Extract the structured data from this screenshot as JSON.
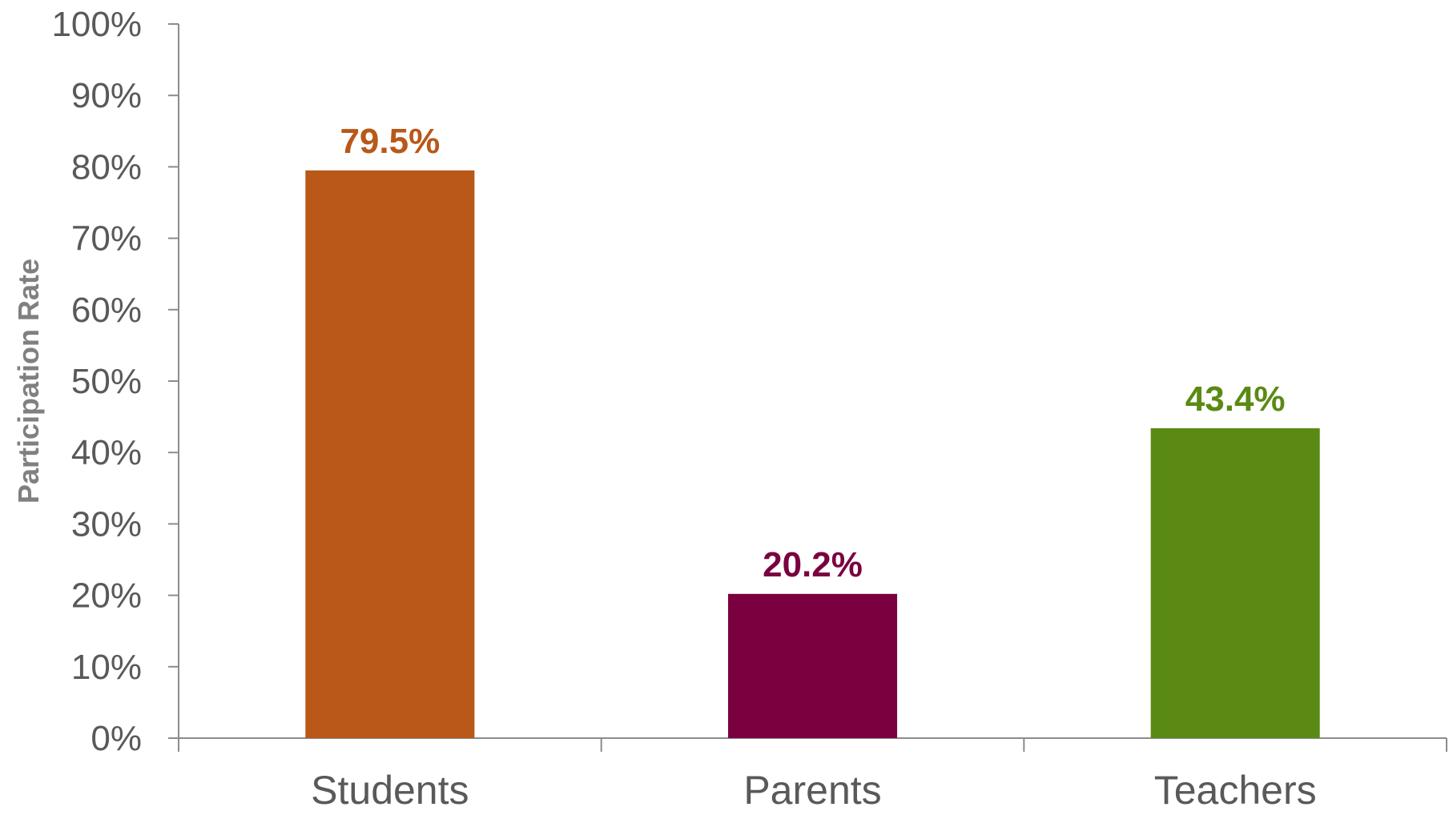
{
  "chart_data": {
    "type": "bar",
    "title": "",
    "xlabel": "",
    "ylabel": "Participation Rate",
    "ylim": [
      0,
      100
    ],
    "yticks": [
      0,
      10,
      20,
      30,
      40,
      50,
      60,
      70,
      80,
      90,
      100
    ],
    "ytick_suffix": "%",
    "grid": false,
    "legend": "none",
    "categories": [
      "Students",
      "Parents",
      "Teachers"
    ],
    "values": [
      79.5,
      20.2,
      43.4
    ],
    "data_labels": [
      "79.5%",
      "20.2%",
      "43.4%"
    ],
    "colors": [
      "#B95818",
      "#7A0040",
      "#5A8A14"
    ],
    "axis_color": "#8C8C8C",
    "text_color": "#595959"
  }
}
